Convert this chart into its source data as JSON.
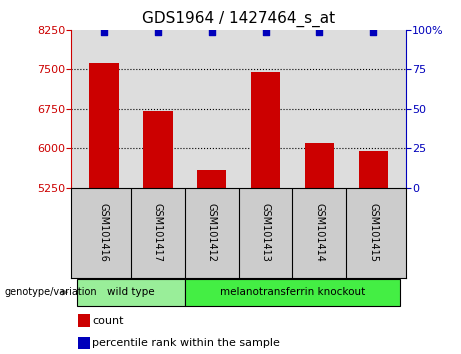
{
  "title": "GDS1964 / 1427464_s_at",
  "samples": [
    "GSM101416",
    "GSM101417",
    "GSM101412",
    "GSM101413",
    "GSM101414",
    "GSM101415"
  ],
  "bar_values": [
    7620,
    6700,
    5580,
    7460,
    6100,
    5950
  ],
  "percentile_values": [
    99,
    99,
    99,
    99,
    99,
    99
  ],
  "bar_color": "#cc0000",
  "dot_color": "#0000bb",
  "ylim_left": [
    5250,
    8250
  ],
  "ylim_right": [
    0,
    100
  ],
  "yticks_left": [
    5250,
    6000,
    6750,
    7500,
    8250
  ],
  "yticks_right": [
    0,
    25,
    50,
    75,
    100
  ],
  "grid_values": [
    6000,
    6750,
    7500
  ],
  "groups": [
    {
      "label": "wild type",
      "indices": [
        0,
        1
      ],
      "color": "#99ee99"
    },
    {
      "label": "melanotransferrin knockout",
      "indices": [
        2,
        3,
        4,
        5
      ],
      "color": "#44ee44"
    }
  ],
  "genotype_label": "genotype/variation",
  "legend_count_label": "count",
  "legend_pct_label": "percentile rank within the sample",
  "bar_width": 0.55,
  "background_color": "#ffffff",
  "plot_bg_color": "#dddddd",
  "sample_bg_color": "#cccccc",
  "title_fontsize": 11,
  "tick_fontsize": 8,
  "label_fontsize": 8
}
